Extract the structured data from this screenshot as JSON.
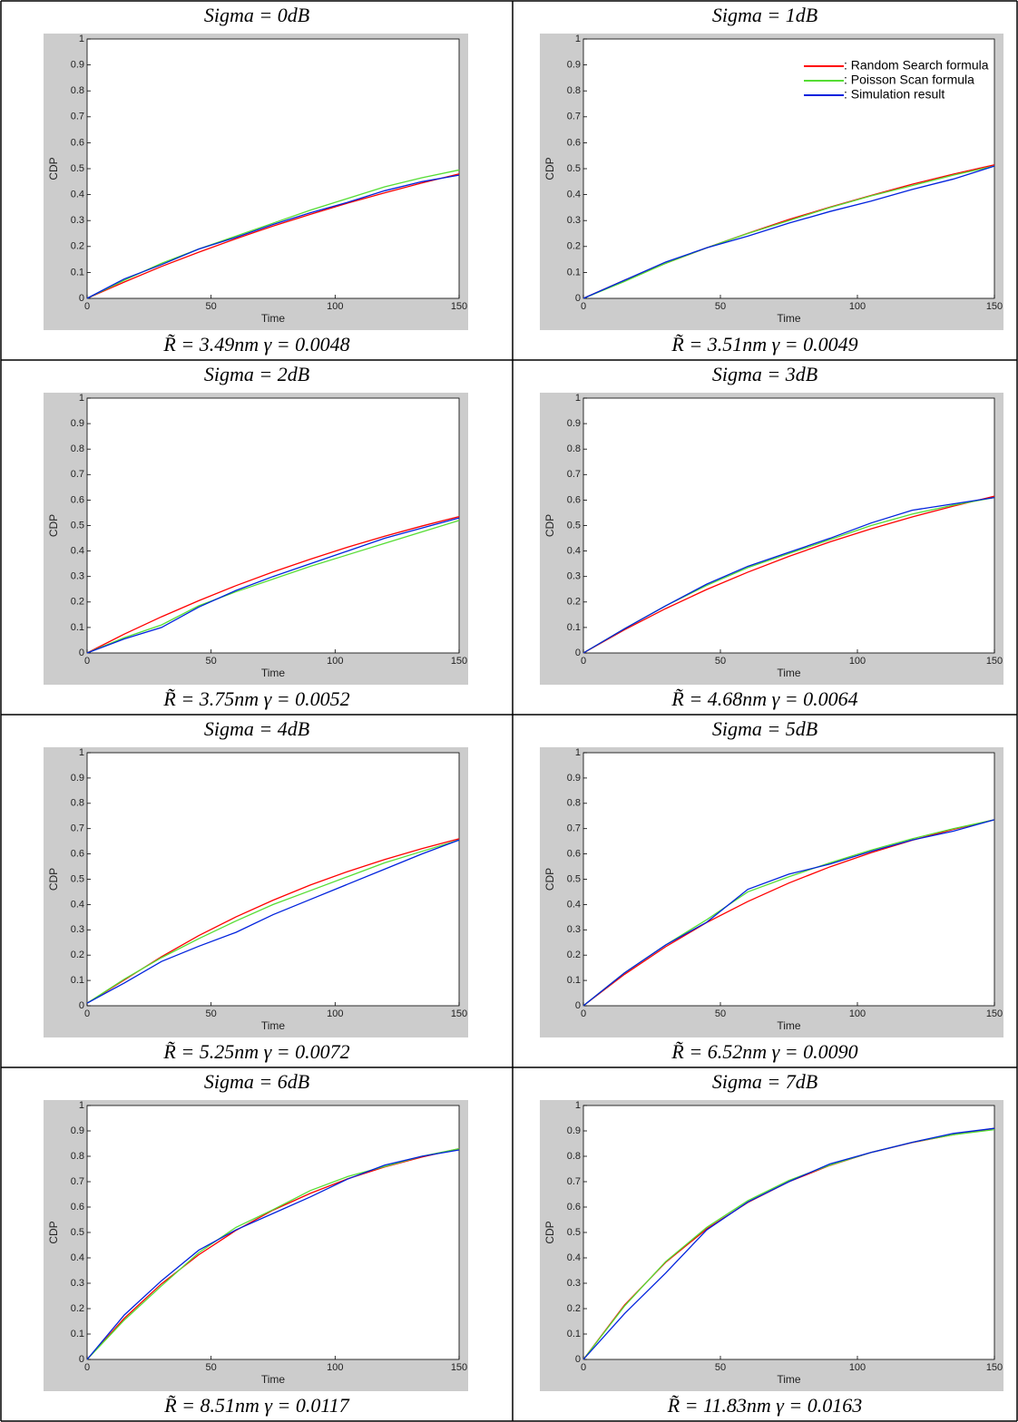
{
  "chart_data": [
    {
      "type": "line",
      "title": "Sigma = 0dB",
      "caption": "R̃ = 3.49nm γ = 0.0048",
      "xlabel": "Time",
      "ylabel": "CDP",
      "x": [
        0,
        15,
        30,
        45,
        60,
        75,
        90,
        105,
        120,
        135,
        150
      ],
      "xlim": [
        0,
        150
      ],
      "xticks": [
        0,
        50,
        100,
        150
      ],
      "ylim": [
        0,
        1
      ],
      "yticks": [
        0,
        0.1,
        0.2,
        0.3,
        0.4,
        0.5,
        0.6,
        0.7,
        0.8,
        0.9,
        1
      ],
      "series": [
        {
          "color": "#ff0000",
          "values": [
            0,
            0.063,
            0.123,
            0.178,
            0.23,
            0.279,
            0.324,
            0.367,
            0.407,
            0.445,
            0.48
          ]
        },
        {
          "color": "#55dd33",
          "values": [
            0,
            0.07,
            0.135,
            0.19,
            0.24,
            0.29,
            0.34,
            0.385,
            0.43,
            0.465,
            0.495
          ]
        },
        {
          "color": "#0022dd",
          "values": [
            0,
            0.075,
            0.13,
            0.19,
            0.235,
            0.285,
            0.33,
            0.37,
            0.415,
            0.45,
            0.475
          ]
        }
      ]
    },
    {
      "type": "line",
      "title": "Sigma = 1dB",
      "caption": "R̃ = 3.51nm γ = 0.0049",
      "xlabel": "Time",
      "ylabel": "CDP",
      "x": [
        0,
        15,
        30,
        45,
        60,
        75,
        90,
        105,
        120,
        135,
        150
      ],
      "xlim": [
        0,
        150
      ],
      "xticks": [
        0,
        50,
        100,
        150
      ],
      "ylim": [
        0,
        1
      ],
      "yticks": [
        0,
        0.1,
        0.2,
        0.3,
        0.4,
        0.5,
        0.6,
        0.7,
        0.8,
        0.9,
        1
      ],
      "legend": "upper right",
      "series": [
        {
          "name": ": Random Search formula",
          "color": "#ff0000",
          "values": [
            0,
            0.07,
            0.135,
            0.195,
            0.251,
            0.304,
            0.352,
            0.397,
            0.44,
            0.479,
            0.515
          ]
        },
        {
          "name": ": Poisson Scan formula",
          "color": "#55dd33",
          "values": [
            0,
            0.065,
            0.135,
            0.195,
            0.25,
            0.3,
            0.35,
            0.395,
            0.435,
            0.475,
            0.51
          ]
        },
        {
          "name": ": Simulation result",
          "color": "#0022dd",
          "values": [
            0,
            0.07,
            0.14,
            0.195,
            0.24,
            0.29,
            0.335,
            0.375,
            0.42,
            0.46,
            0.51
          ]
        }
      ]
    },
    {
      "type": "line",
      "title": "Sigma = 2dB",
      "caption": "R̃ = 3.75nm γ = 0.0052",
      "xlabel": "Time",
      "ylabel": "CDP",
      "x": [
        0,
        15,
        30,
        45,
        60,
        75,
        90,
        105,
        120,
        135,
        150
      ],
      "xlim": [
        0,
        150
      ],
      "xticks": [
        0,
        50,
        100,
        150
      ],
      "ylim": [
        0,
        1
      ],
      "yticks": [
        0,
        0.1,
        0.2,
        0.3,
        0.4,
        0.5,
        0.6,
        0.7,
        0.8,
        0.9,
        1
      ],
      "series": [
        {
          "color": "#ff0000",
          "values": [
            0,
            0.074,
            0.142,
            0.205,
            0.264,
            0.318,
            0.368,
            0.415,
            0.458,
            0.498,
            0.535
          ]
        },
        {
          "color": "#55dd33",
          "values": [
            0,
            0.06,
            0.11,
            0.185,
            0.24,
            0.29,
            0.34,
            0.385,
            0.43,
            0.475,
            0.52
          ]
        },
        {
          "color": "#0022dd",
          "values": [
            0,
            0.055,
            0.1,
            0.18,
            0.245,
            0.3,
            0.35,
            0.4,
            0.45,
            0.49,
            0.53
          ]
        }
      ]
    },
    {
      "type": "line",
      "title": "Sigma = 3dB",
      "caption": "R̃ = 4.68nm γ = 0.0064",
      "xlabel": "Time",
      "ylabel": "CDP",
      "x": [
        0,
        15,
        30,
        45,
        60,
        75,
        90,
        105,
        120,
        135,
        150
      ],
      "xlim": [
        0,
        150
      ],
      "xticks": [
        0,
        50,
        100,
        150
      ],
      "ylim": [
        0,
        1
      ],
      "yticks": [
        0,
        0.1,
        0.2,
        0.3,
        0.4,
        0.5,
        0.6,
        0.7,
        0.8,
        0.9,
        1
      ],
      "series": [
        {
          "color": "#ff0000",
          "values": [
            0,
            0.091,
            0.174,
            0.249,
            0.317,
            0.379,
            0.436,
            0.487,
            0.534,
            0.576,
            0.615
          ]
        },
        {
          "color": "#55dd33",
          "values": [
            0,
            0.095,
            0.185,
            0.265,
            0.335,
            0.39,
            0.445,
            0.5,
            0.545,
            0.58,
            0.61
          ]
        },
        {
          "color": "#0022dd",
          "values": [
            0,
            0.095,
            0.185,
            0.27,
            0.34,
            0.395,
            0.45,
            0.51,
            0.56,
            0.585,
            0.61
          ]
        }
      ]
    },
    {
      "type": "line",
      "title": "Sigma = 4dB",
      "caption": "R̃ = 5.25nm γ = 0.0072",
      "xlabel": "Time",
      "ylabel": "CDP",
      "x": [
        0,
        15,
        30,
        45,
        60,
        75,
        90,
        105,
        120,
        135,
        150
      ],
      "xlim": [
        0,
        150
      ],
      "xticks": [
        0,
        50,
        100,
        150
      ],
      "ylim": [
        0,
        1
      ],
      "yticks": [
        0,
        0.1,
        0.2,
        0.3,
        0.4,
        0.5,
        0.6,
        0.7,
        0.8,
        0.9,
        1
      ],
      "series": [
        {
          "color": "#ff0000",
          "values": [
            0.01,
            0.102,
            0.194,
            0.277,
            0.351,
            0.417,
            0.477,
            0.53,
            0.578,
            0.621,
            0.66
          ]
        },
        {
          "color": "#55dd33",
          "values": [
            0.01,
            0.105,
            0.19,
            0.265,
            0.335,
            0.4,
            0.455,
            0.51,
            0.565,
            0.61,
            0.655
          ]
        },
        {
          "color": "#0022dd",
          "values": [
            0.01,
            0.09,
            0.175,
            0.235,
            0.29,
            0.36,
            0.42,
            0.48,
            0.54,
            0.6,
            0.655
          ]
        }
      ]
    },
    {
      "type": "line",
      "title": "Sigma = 5dB",
      "caption": "R̃ = 6.52nm γ = 0.0090",
      "xlabel": "Time",
      "ylabel": "CDP",
      "x": [
        0,
        15,
        30,
        45,
        60,
        75,
        90,
        105,
        120,
        135,
        150
      ],
      "xlim": [
        0,
        150
      ],
      "xticks": [
        0,
        50,
        100,
        150
      ],
      "ylim": [
        0,
        1
      ],
      "yticks": [
        0,
        0.1,
        0.2,
        0.3,
        0.4,
        0.5,
        0.6,
        0.7,
        0.8,
        0.9,
        1
      ],
      "series": [
        {
          "color": "#ff0000",
          "values": [
            0,
            0.124,
            0.233,
            0.329,
            0.412,
            0.485,
            0.549,
            0.605,
            0.654,
            0.697,
            0.735
          ]
        },
        {
          "color": "#55dd33",
          "values": [
            0,
            0.13,
            0.24,
            0.34,
            0.45,
            0.51,
            0.565,
            0.615,
            0.66,
            0.7,
            0.735
          ]
        },
        {
          "color": "#0022dd",
          "values": [
            0,
            0.13,
            0.24,
            0.33,
            0.46,
            0.52,
            0.56,
            0.61,
            0.655,
            0.69,
            0.735
          ]
        }
      ]
    },
    {
      "type": "line",
      "title": "Sigma = 6dB",
      "caption": "R̃ = 8.51nm γ = 0.0117",
      "xlabel": "Time",
      "ylabel": "CDP",
      "x": [
        0,
        15,
        30,
        45,
        60,
        75,
        90,
        105,
        120,
        135,
        150
      ],
      "xlim": [
        0,
        150
      ],
      "xticks": [
        0,
        50,
        100,
        150
      ],
      "ylim": [
        0,
        1
      ],
      "yticks": [
        0,
        0.1,
        0.2,
        0.3,
        0.4,
        0.5,
        0.6,
        0.7,
        0.8,
        0.9,
        1
      ],
      "series": [
        {
          "color": "#ff0000",
          "values": [
            0,
            0.162,
            0.298,
            0.412,
            0.508,
            0.588,
            0.654,
            0.711,
            0.758,
            0.797,
            0.83
          ]
        },
        {
          "color": "#55dd33",
          "values": [
            0,
            0.155,
            0.29,
            0.42,
            0.52,
            0.59,
            0.665,
            0.72,
            0.76,
            0.8,
            0.83
          ]
        },
        {
          "color": "#0022dd",
          "values": [
            0,
            0.175,
            0.31,
            0.43,
            0.51,
            0.575,
            0.64,
            0.71,
            0.765,
            0.8,
            0.825
          ]
        }
      ]
    },
    {
      "type": "line",
      "title": "Sigma = 7dB",
      "caption": "R̃ = 11.83nm γ = 0.0163",
      "xlabel": "Time",
      "ylabel": "CDP",
      "x": [
        0,
        15,
        30,
        45,
        60,
        75,
        90,
        105,
        120,
        135,
        150
      ],
      "xlim": [
        0,
        150
      ],
      "xticks": [
        0,
        50,
        100,
        150
      ],
      "ylim": [
        0,
        1
      ],
      "yticks": [
        0,
        0.1,
        0.2,
        0.3,
        0.4,
        0.5,
        0.6,
        0.7,
        0.8,
        0.9,
        1
      ],
      "series": [
        {
          "color": "#ff0000",
          "values": [
            0,
            0.214,
            0.382,
            0.514,
            0.618,
            0.7,
            0.764,
            0.815,
            0.854,
            0.885,
            0.91
          ]
        },
        {
          "color": "#55dd33",
          "values": [
            0,
            0.21,
            0.385,
            0.52,
            0.625,
            0.705,
            0.765,
            0.815,
            0.855,
            0.885,
            0.905
          ]
        },
        {
          "color": "#0022dd",
          "values": [
            0,
            0.18,
            0.34,
            0.51,
            0.62,
            0.7,
            0.77,
            0.815,
            0.855,
            0.89,
            0.91
          ]
        }
      ]
    }
  ]
}
